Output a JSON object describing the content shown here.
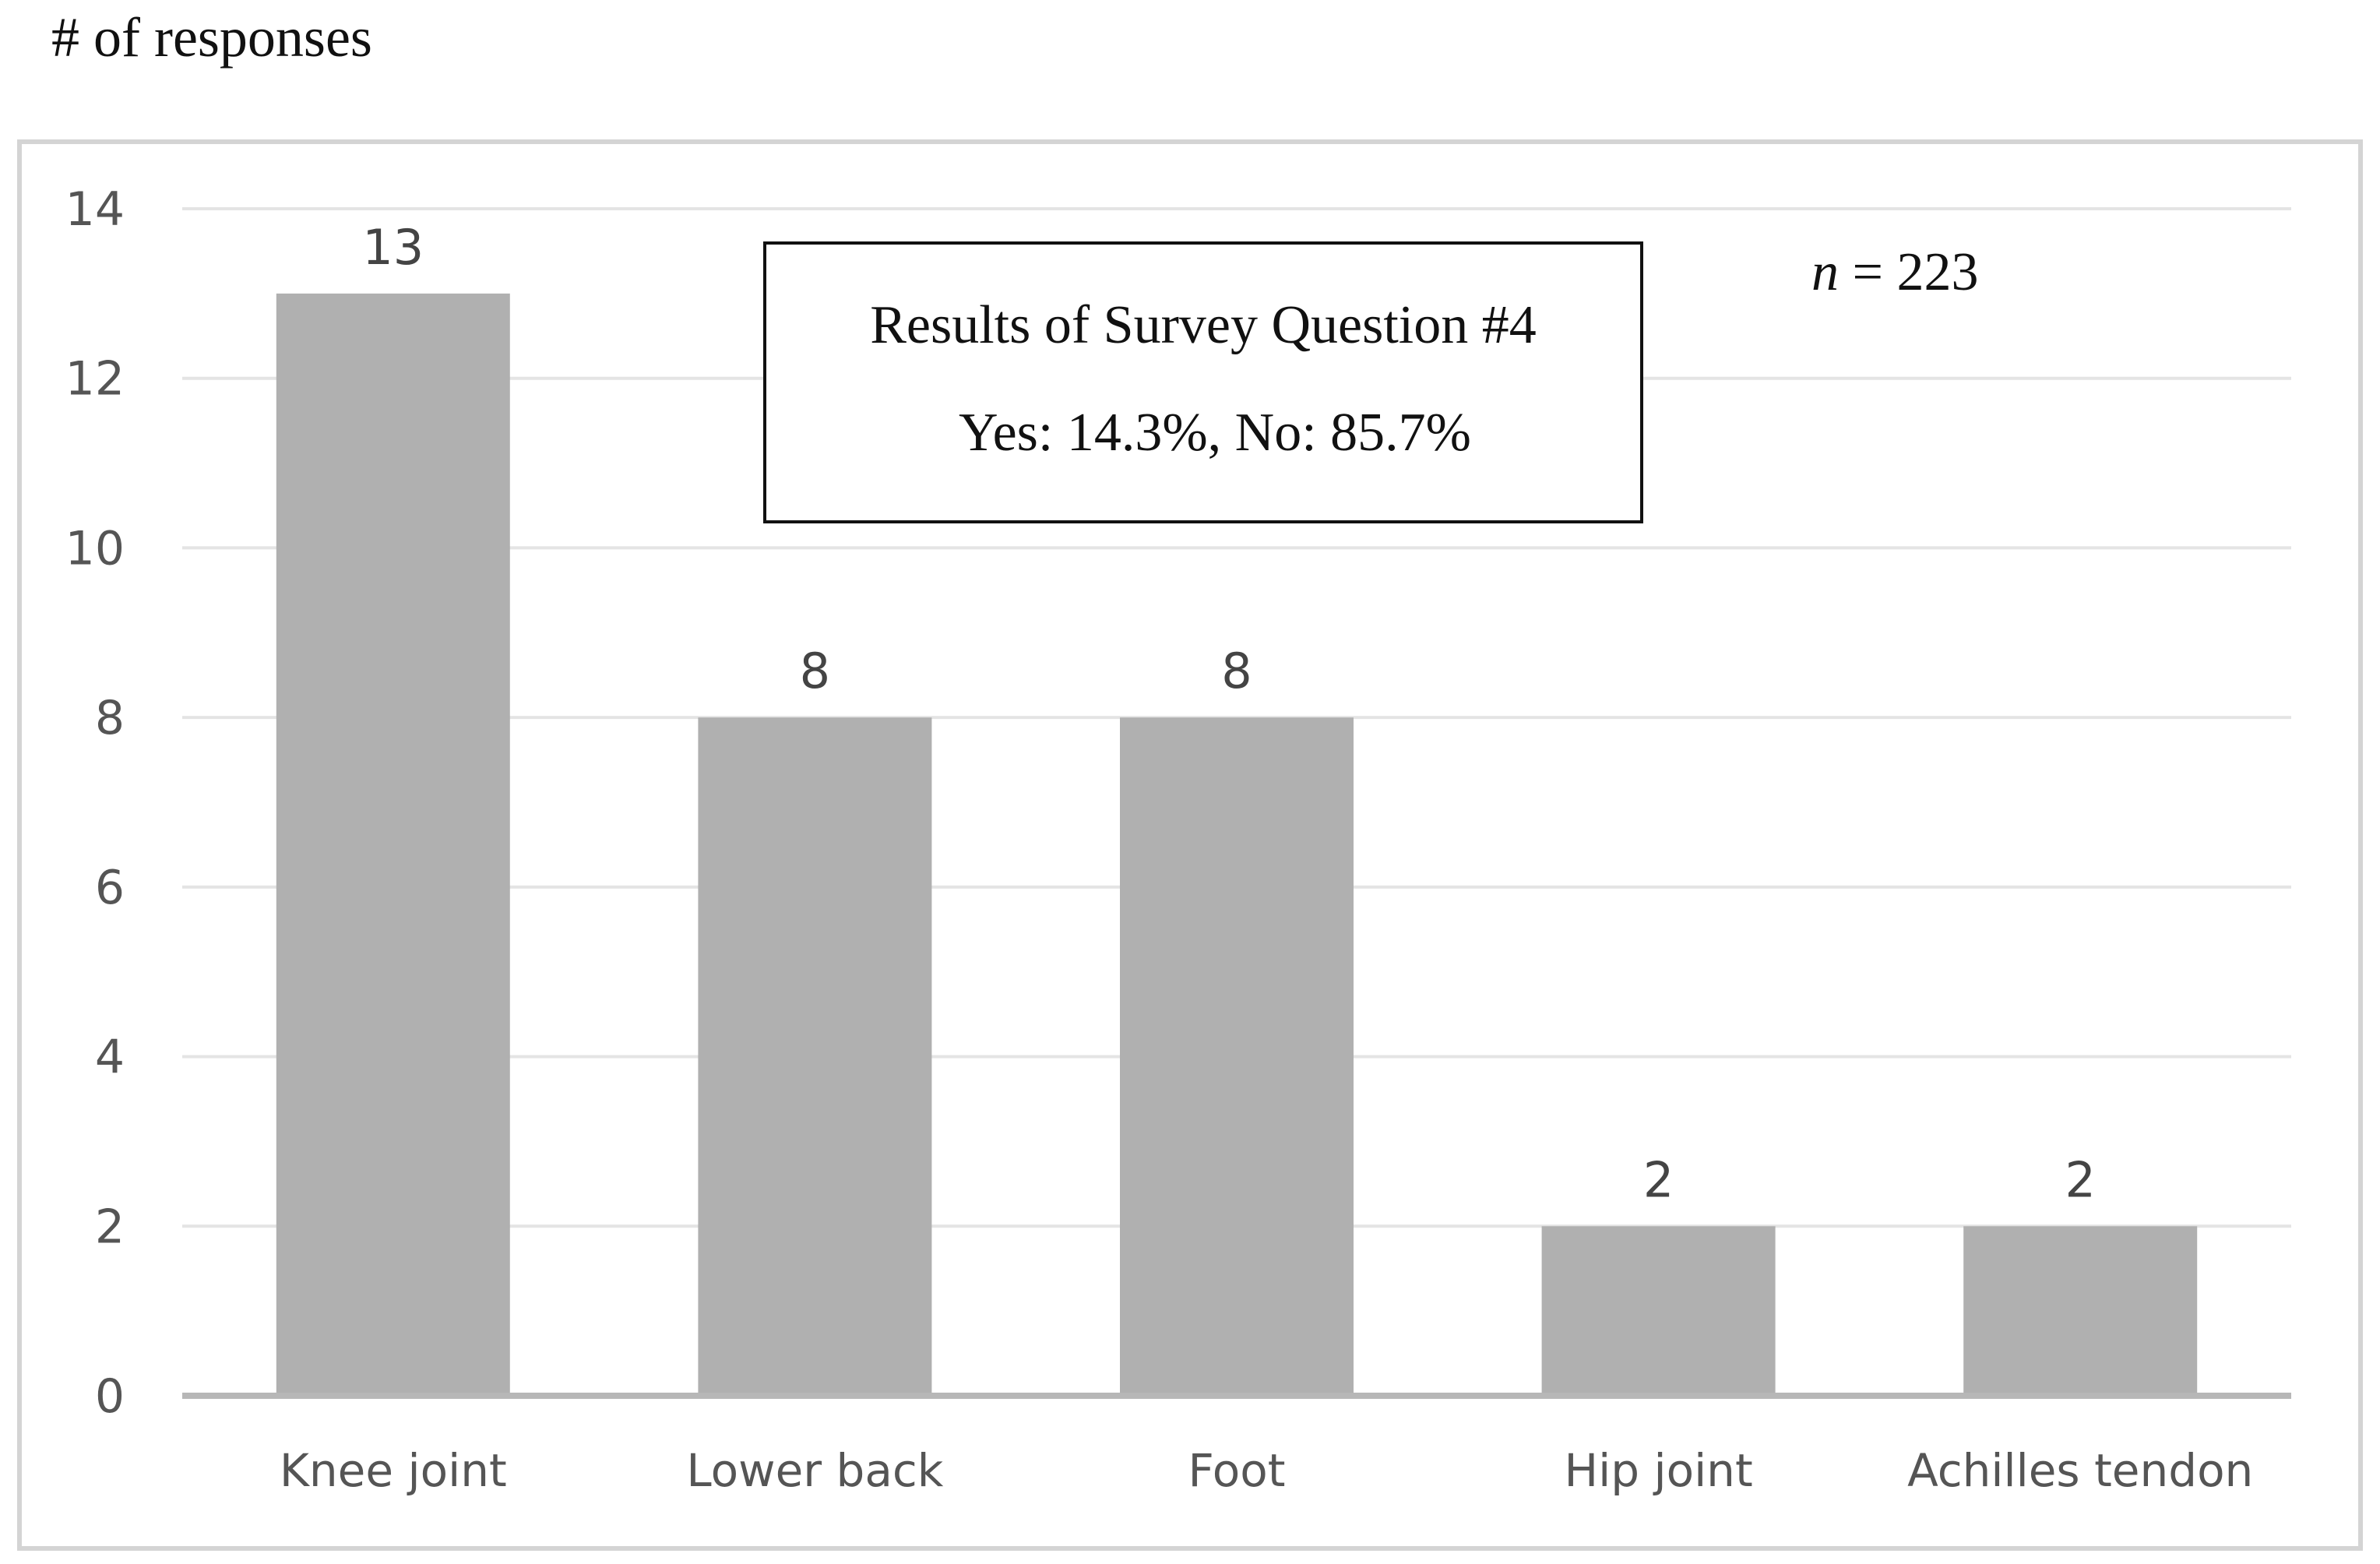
{
  "chart_data": {
    "type": "bar",
    "ylabel": "# of responses",
    "xlabel": "",
    "title": "",
    "categories": [
      "Knee joint",
      "Lower back",
      "Foot",
      "Hip joint",
      "Achilles tendon"
    ],
    "values": [
      13,
      8,
      8,
      2,
      2
    ],
    "data_labels": [
      "13",
      "8",
      "8",
      "2",
      "2"
    ],
    "ylim": [
      0,
      14
    ],
    "yticks": [
      0,
      2,
      4,
      6,
      8,
      10,
      12,
      14
    ],
    "grid": true,
    "legend": "none",
    "bar_color": "#b0b0b0",
    "annotations": {
      "box_line1": "Results of Survey Question #4",
      "box_line2": "Yes: 14.3%, No: 85.7%",
      "n_symbol": "n",
      "n_value": " = 223"
    }
  }
}
